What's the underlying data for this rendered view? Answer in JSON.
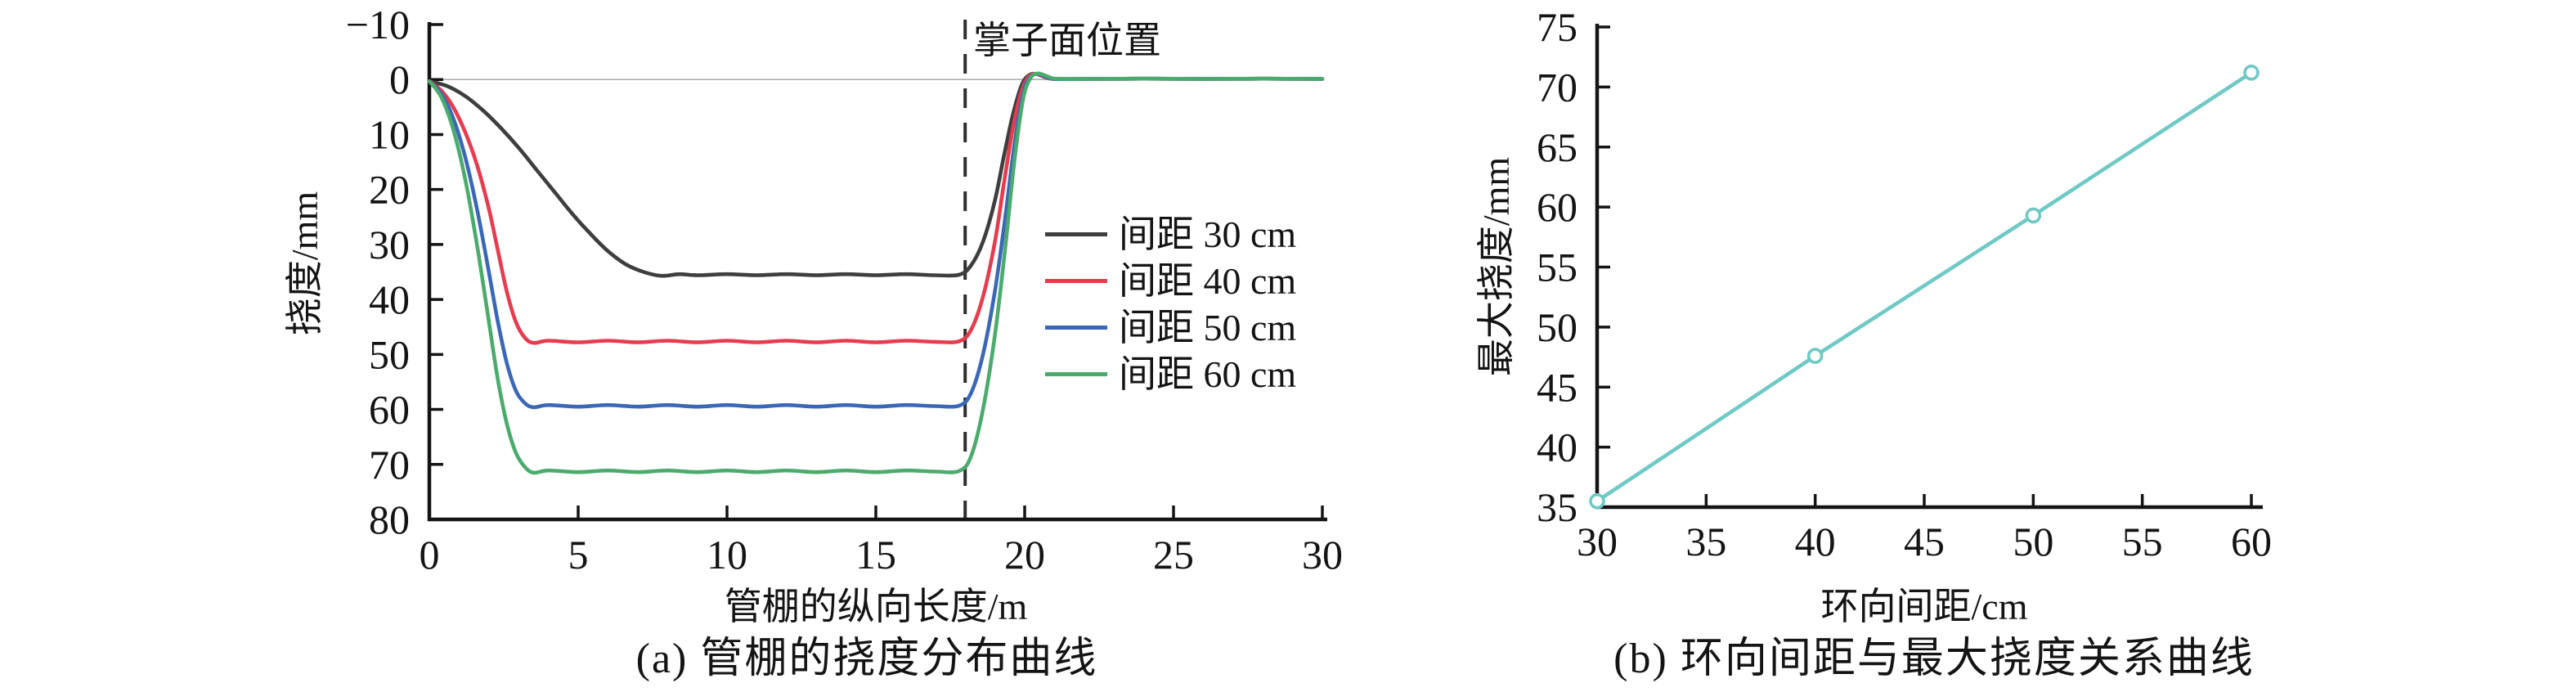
{
  "figure": {
    "background": "#ffffff",
    "text_color": "#141414",
    "zero_line_color": "#b0b0b0",
    "dashed_line_color": "#2f2f2f"
  },
  "chart_data": [
    {
      "id": "a",
      "type": "line",
      "caption": "(a) 管棚的挠度分布曲线",
      "xlabel": "管棚的纵向长度/m",
      "ylabel": "挠度/mm",
      "xlim": [
        0,
        30
      ],
      "ylim": [
        -10,
        80
      ],
      "y_axis_inverted": true,
      "grid": false,
      "zero_reference_line": 0,
      "xticks": [
        0,
        5,
        10,
        15,
        20,
        25,
        30
      ],
      "yticks": [
        -10,
        0,
        10,
        20,
        30,
        40,
        50,
        60,
        70,
        80
      ],
      "annotation": {
        "label": "掌子面位置",
        "x": 18,
        "style": "vertical-dashed-line"
      },
      "legend_position": "right-middle",
      "series": [
        {
          "name": "间距 30 cm",
          "spacing_cm": 30,
          "color": "#3e3e3e",
          "plateau_mm": 35.5,
          "points": [
            [
              0,
              0.3
            ],
            [
              0.6,
              1.2
            ],
            [
              1.2,
              3
            ],
            [
              1.8,
              5.6
            ],
            [
              2.4,
              8.8
            ],
            [
              3,
              12.4
            ],
            [
              3.6,
              16.4
            ],
            [
              4.2,
              20.4
            ],
            [
              4.8,
              24.4
            ],
            [
              5.4,
              28
            ],
            [
              6,
              31.2
            ],
            [
              6.6,
              33.6
            ],
            [
              7.2,
              35
            ],
            [
              7.8,
              35.7
            ],
            [
              8.4,
              35.4
            ],
            [
              9,
              35.6
            ],
            [
              10,
              35.4
            ],
            [
              11,
              35.6
            ],
            [
              12,
              35.4
            ],
            [
              13,
              35.6
            ],
            [
              14,
              35.4
            ],
            [
              15,
              35.6
            ],
            [
              16,
              35.4
            ],
            [
              17,
              35.6
            ],
            [
              17.8,
              35.5
            ],
            [
              18.2,
              33.8
            ],
            [
              18.6,
              29.5
            ],
            [
              19,
              22
            ],
            [
              19.3,
              14
            ],
            [
              19.6,
              6.5
            ],
            [
              19.9,
              1
            ],
            [
              20.15,
              -0.8
            ],
            [
              20.4,
              -1
            ],
            [
              20.7,
              -0.4
            ],
            [
              21,
              -0.1
            ],
            [
              22,
              -0.1
            ],
            [
              24,
              -0.15
            ],
            [
              26,
              -0.1
            ],
            [
              28,
              -0.15
            ],
            [
              30,
              -0.1
            ]
          ]
        },
        {
          "name": "间距 40 cm",
          "spacing_cm": 40,
          "color": "#e63c4e",
          "plateau_mm": 47.6,
          "points": [
            [
              0,
              0.3
            ],
            [
              0.4,
              2
            ],
            [
              0.8,
              5
            ],
            [
              1.2,
              9.5
            ],
            [
              1.6,
              15.5
            ],
            [
              2,
              23.5
            ],
            [
              2.3,
              31
            ],
            [
              2.6,
              38.5
            ],
            [
              2.9,
              44
            ],
            [
              3.2,
              46.9
            ],
            [
              3.5,
              47.9
            ],
            [
              4,
              47.5
            ],
            [
              5,
              47.8
            ],
            [
              6,
              47.5
            ],
            [
              7,
              47.8
            ],
            [
              8,
              47.5
            ],
            [
              9,
              47.8
            ],
            [
              10,
              47.5
            ],
            [
              11,
              47.8
            ],
            [
              12,
              47.5
            ],
            [
              13,
              47.8
            ],
            [
              14,
              47.5
            ],
            [
              15,
              47.8
            ],
            [
              16,
              47.5
            ],
            [
              17,
              47.7
            ],
            [
              17.8,
              47.6
            ],
            [
              18.2,
              45.5
            ],
            [
              18.6,
              39.5
            ],
            [
              19,
              29.5
            ],
            [
              19.3,
              19
            ],
            [
              19.6,
              9
            ],
            [
              19.9,
              2
            ],
            [
              20.15,
              -0.6
            ],
            [
              20.4,
              -1
            ],
            [
              20.7,
              -0.4
            ],
            [
              21,
              -0.1
            ],
            [
              22,
              -0.1
            ],
            [
              24,
              -0.15
            ],
            [
              26,
              -0.1
            ],
            [
              28,
              -0.15
            ],
            [
              30,
              -0.1
            ]
          ]
        },
        {
          "name": "间距 50 cm",
          "spacing_cm": 50,
          "color": "#3a68b6",
          "plateau_mm": 59.3,
          "points": [
            [
              0,
              0.3
            ],
            [
              0.4,
              2.6
            ],
            [
              0.8,
              7
            ],
            [
              1.2,
              14
            ],
            [
              1.6,
              23.5
            ],
            [
              2,
              35
            ],
            [
              2.3,
              44
            ],
            [
              2.6,
              51.5
            ],
            [
              2.9,
              56.5
            ],
            [
              3.2,
              58.8
            ],
            [
              3.5,
              59.6
            ],
            [
              4,
              59.2
            ],
            [
              5,
              59.5
            ],
            [
              6,
              59.2
            ],
            [
              7,
              59.5
            ],
            [
              8,
              59.2
            ],
            [
              9,
              59.5
            ],
            [
              10,
              59.2
            ],
            [
              11,
              59.5
            ],
            [
              12,
              59.2
            ],
            [
              13,
              59.5
            ],
            [
              14,
              59.2
            ],
            [
              15,
              59.5
            ],
            [
              16,
              59.2
            ],
            [
              17,
              59.4
            ],
            [
              17.8,
              59.3
            ],
            [
              18.2,
              57
            ],
            [
              18.6,
              50
            ],
            [
              19,
              38.5
            ],
            [
              19.35,
              25
            ],
            [
              19.65,
              12
            ],
            [
              19.95,
              2.5
            ],
            [
              20.2,
              -0.5
            ],
            [
              20.45,
              -1
            ],
            [
              20.7,
              -0.5
            ],
            [
              21,
              -0.1
            ],
            [
              22,
              -0.1
            ],
            [
              24,
              -0.15
            ],
            [
              26,
              -0.1
            ],
            [
              28,
              -0.15
            ],
            [
              30,
              -0.1
            ]
          ]
        },
        {
          "name": "间距 60 cm",
          "spacing_cm": 60,
          "color": "#4bab6d",
          "plateau_mm": 71.2,
          "points": [
            [
              0,
              0.3
            ],
            [
              0.4,
              3.2
            ],
            [
              0.8,
              9
            ],
            [
              1.2,
              18
            ],
            [
              1.6,
              30
            ],
            [
              2,
              44
            ],
            [
              2.3,
              54.5
            ],
            [
              2.6,
              62.5
            ],
            [
              2.9,
              67.8
            ],
            [
              3.2,
              70.4
            ],
            [
              3.5,
              71.5
            ],
            [
              4,
              71.1
            ],
            [
              5,
              71.4
            ],
            [
              6,
              71.1
            ],
            [
              7,
              71.4
            ],
            [
              8,
              71.1
            ],
            [
              9,
              71.4
            ],
            [
              10,
              71.1
            ],
            [
              11,
              71.4
            ],
            [
              12,
              71.1
            ],
            [
              13,
              71.4
            ],
            [
              14,
              71.1
            ],
            [
              15,
              71.4
            ],
            [
              16,
              71.1
            ],
            [
              17,
              71.3
            ],
            [
              17.8,
              71.2
            ],
            [
              18.2,
              68.5
            ],
            [
              18.6,
              60
            ],
            [
              19,
              46.5
            ],
            [
              19.35,
              30.5
            ],
            [
              19.65,
              15
            ],
            [
              19.95,
              3.5
            ],
            [
              20.2,
              -0.3
            ],
            [
              20.45,
              -1.1
            ],
            [
              20.75,
              -0.6
            ],
            [
              21.05,
              -0.15
            ],
            [
              22,
              -0.1
            ],
            [
              24,
              -0.15
            ],
            [
              26,
              -0.1
            ],
            [
              28,
              -0.15
            ],
            [
              30,
              -0.1
            ]
          ]
        }
      ]
    },
    {
      "id": "b",
      "type": "line",
      "caption": "(b) 环向间距与最大挠度关系曲线",
      "xlabel": "环向间距/cm",
      "ylabel": "最大挠度/mm",
      "xlim": [
        30,
        60
      ],
      "ylim": [
        35,
        75
      ],
      "grid": false,
      "xticks": [
        30,
        35,
        40,
        45,
        50,
        55,
        60
      ],
      "yticks": [
        35,
        40,
        45,
        50,
        55,
        60,
        65,
        70,
        75
      ],
      "series": [
        {
          "name": "最大挠度",
          "color": "#6fc9c5",
          "marker": "open-circle",
          "x": [
            30,
            40,
            50,
            60
          ],
          "y": [
            35.5,
            47.6,
            59.3,
            71.2
          ]
        }
      ]
    }
  ]
}
